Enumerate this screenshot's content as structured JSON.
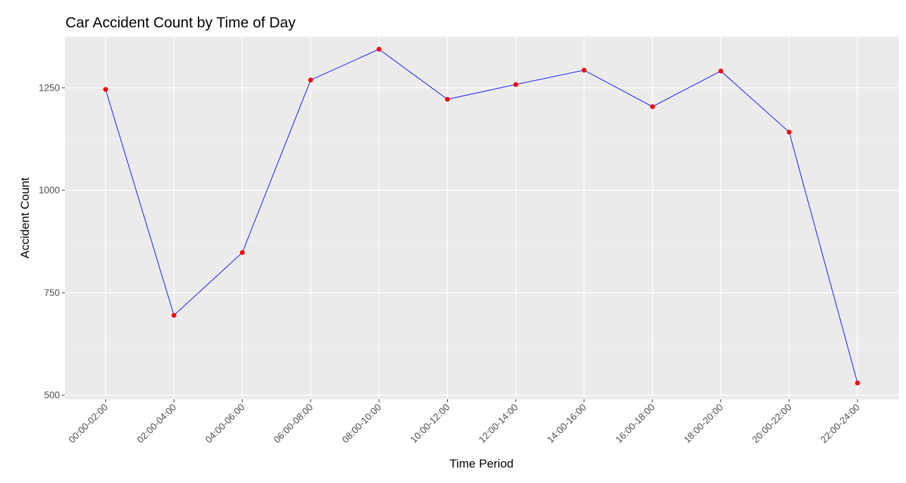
{
  "colors": {
    "panel_background": "#EBEBEB",
    "grid_major": "#FFFFFF",
    "grid_minor": "#F5F5F5",
    "line": "#0000FF",
    "point": "#FF0000",
    "tick_text": "#4D4D4D",
    "tick_mark": "#333333"
  },
  "chart_data": {
    "type": "line",
    "title": "Car Accident Count by Time of Day",
    "xlabel": "Time Period",
    "ylabel": "Accident Count",
    "categories": [
      "00:00-02:00",
      "02:00-04:00",
      "04:00-06:00",
      "06:00-08:00",
      "08:00-10:00",
      "10:00-12:00",
      "12:00-14:00",
      "14:00-16:00",
      "16:00-18:00",
      "18:00-20:00",
      "20:00-22:00",
      "22:00-24:00"
    ],
    "values": [
      1246,
      695,
      848,
      1269,
      1344,
      1222,
      1258,
      1293,
      1204,
      1291,
      1142,
      530
    ],
    "ylim": [
      490,
      1375
    ],
    "y_ticks": [
      500,
      750,
      1000,
      1250
    ],
    "x_tick_rotation": 45,
    "grid": true,
    "legend": "none"
  }
}
